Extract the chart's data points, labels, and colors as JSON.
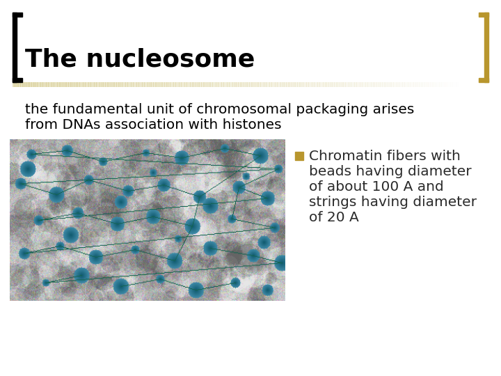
{
  "bg_color": "#ffffff",
  "title_bold": "The nucleosome",
  "title_colon": ":",
  "subtitle_line1": "the fundamental unit of chromosomal packaging arises",
  "subtitle_line2": "from DNAs association with histones",
  "bullet_text_lines": [
    "Chromatin fibers with",
    "beads having diameter",
    "of about 100 A and",
    "strings having diameter",
    "of 20 A"
  ],
  "bracket_color_left": "#000000",
  "bracket_color_right": "#b8962e",
  "separator_color": "#d4c98a",
  "bullet_color": "#b8962e",
  "title_color": "#000000",
  "subtitle_color": "#000000",
  "bullet_text_color": "#2a2a2a",
  "title_fontsize": 26,
  "subtitle_fontsize": 14.5,
  "bullet_fontsize": 14.5
}
